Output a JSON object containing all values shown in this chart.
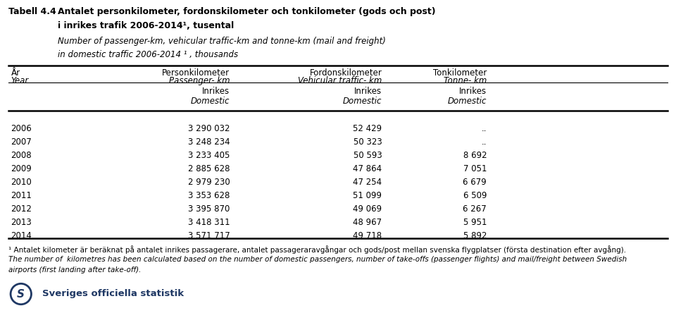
{
  "title_label": "Tabell 4.4",
  "title_line1": "Antalet personkilometer, fordonskilometer och tonkilometer (gods och post)",
  "title_line2": "i inrikes trafik 2006-2014¹, tusental",
  "subtitle_line1": "Number of passenger-km, vehicular traffic-km and tonne-km (mail and freight)",
  "subtitle_line2": "in domestic traffic 2006-2014 ¹ , thousands",
  "col0_header1": "År",
  "col0_header2": "Year",
  "col1_header1": "Personkilometer",
  "col1_header2": "Passenger- km",
  "col2_header1": "Fordonskilometer",
  "col2_header2": "Vehicular traffic- km",
  "col3_header1": "Tonkilometer",
  "col3_header2": "Tonne- km",
  "inrikes": "Inrikes",
  "domestic": "Domestic",
  "years": [
    "2006",
    "2007",
    "2008",
    "2009",
    "2010",
    "2011",
    "2012",
    "2013",
    "2014"
  ],
  "passenger_km": [
    "3 290 032",
    "3 248 234",
    "3 233 405",
    "2 885 628",
    "2 979 230",
    "3 353 628",
    "3 395 870",
    "3 418 311",
    "3 571 717"
  ],
  "vehicular_km": [
    "52 429",
    "50 323",
    "50 593",
    "47 864",
    "47 254",
    "51 099",
    "49 069",
    "48 967",
    "49 718"
  ],
  "tonne_km": [
    "..",
    "..",
    "8 692",
    "7 051",
    "6 679",
    "6 509",
    "6 267",
    "5 951",
    "5 892"
  ],
  "footnote1": "¹ Antalet kilometer är beräknat på antalet inrikes passagerare, antalet passageraravgångar och gods/post mellan svenska flygplatser (första destination efter avgång).",
  "footnote2a": "The number of  kilometres has been calculated based on the number of domestic passengers, number of take-offs (passenger flights) and mail/freight between Swedish",
  "footnote2b": "airports (first landing after take-off).",
  "logo_text": "Sveriges officiella statistik",
  "bg_color": "#ffffff",
  "text_color": "#000000",
  "logo_color": "#1f3864"
}
